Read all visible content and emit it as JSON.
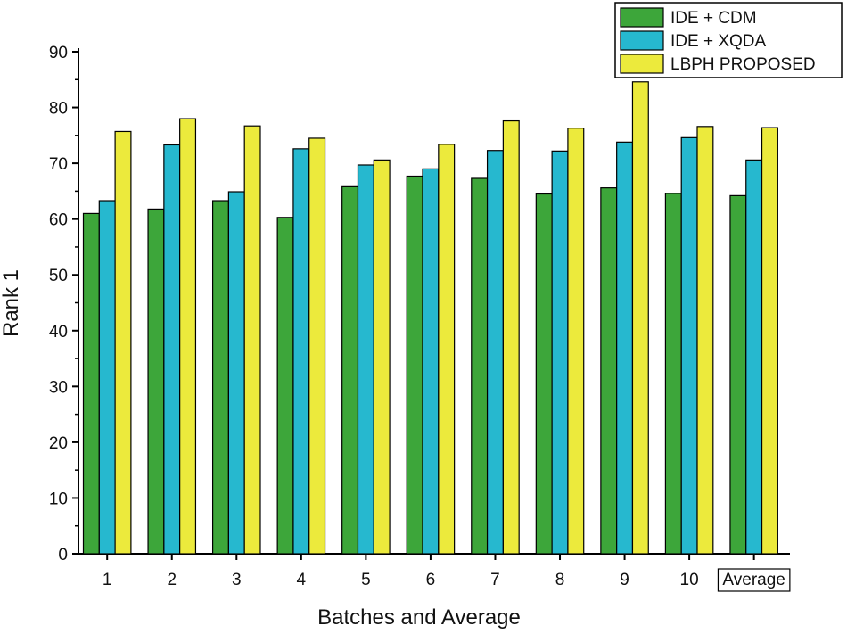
{
  "chart_data": {
    "type": "bar",
    "title": "",
    "xlabel": "Batches and Average",
    "ylabel": "Rank 1",
    "categories": [
      "1",
      "2",
      "3",
      "4",
      "5",
      "6",
      "7",
      "8",
      "9",
      "10",
      "Average"
    ],
    "ylim": [
      0,
      90
    ],
    "yticks": [
      0,
      10,
      20,
      30,
      40,
      50,
      60,
      70,
      80,
      90
    ],
    "grid": false,
    "legend_position": "top-right",
    "series": [
      {
        "name": "IDE + CDM",
        "color": "#3da63a",
        "values": [
          61.0,
          61.8,
          63.3,
          60.3,
          65.8,
          67.7,
          67.3,
          64.5,
          65.6,
          64.6,
          64.2
        ]
      },
      {
        "name": "IDE + XQDA",
        "color": "#26b8cf",
        "values": [
          63.3,
          73.3,
          64.9,
          72.6,
          69.7,
          69.0,
          72.3,
          72.2,
          73.8,
          74.6,
          70.6
        ]
      },
      {
        "name": "LBPH PROPOSED",
        "color": "#ecea3c",
        "values": [
          75.7,
          78.0,
          76.7,
          74.5,
          70.6,
          73.4,
          77.6,
          76.3,
          84.6,
          76.6,
          76.4
        ]
      }
    ]
  }
}
